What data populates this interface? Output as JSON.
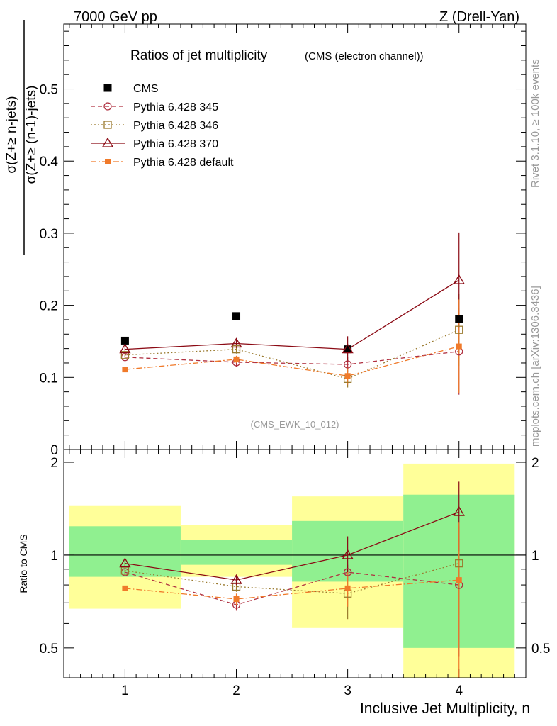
{
  "header": {
    "left": "7000 GeV pp",
    "right": "Z (Drell-Yan)",
    "title_main": "Ratios of jet multiplicity",
    "title_sub": "(CMS (electron channel))",
    "analysis_tag": "(CMS_EWK_10_012)",
    "side_top": "Rivet 3.1.10, ≥ 100k events",
    "side_bottom": "mcplots.cern.ch [arXiv:1306.3436]"
  },
  "chart_data": [
    {
      "type": "scatter",
      "panel": "main",
      "ylabel_numerator": "σ(Z+≥ n-jets)",
      "ylabel_denominator": "σ(Z+≥ (n-1)-jets)",
      "x": [
        1,
        2,
        3,
        4
      ],
      "xlim": [
        0.45,
        4.6
      ],
      "ylim": [
        0,
        0.59
      ],
      "yticks": [
        0,
        0.1,
        0.2,
        0.3,
        0.4,
        0.5
      ],
      "ytick_labels": [
        "0",
        "0.1",
        "0.2",
        "0.3",
        "0.4",
        "0.5"
      ],
      "legend_position": "top-left",
      "series": [
        {
          "name": "CMS",
          "color": "#000000",
          "marker": "filled-square",
          "line": "none",
          "values": [
            0.151,
            0.185,
            0.139,
            0.181
          ]
        },
        {
          "name": "Pythia 6.428 345",
          "color": "#b03040",
          "marker": "open-circle",
          "line": "dashed",
          "values": [
            0.128,
            0.121,
            0.118,
            0.136
          ],
          "err": [
            0.003,
            0.006,
            0.01,
            0.06
          ]
        },
        {
          "name": "Pythia 6.428 346",
          "color": "#9a7a2e",
          "marker": "open-square",
          "line": "dotted",
          "values": [
            0.131,
            0.139,
            0.098,
            0.166
          ],
          "err": [
            0.003,
            0.006,
            0.012,
            0.05
          ]
        },
        {
          "name": "Pythia 6.428 370",
          "color": "#8b0a14",
          "marker": "open-triangle",
          "line": "solid",
          "values": [
            0.139,
            0.147,
            0.139,
            0.235
          ],
          "err": [
            0.003,
            0.006,
            0.018,
            0.066
          ]
        },
        {
          "name": "Pythia 6.428 default",
          "color": "#f07a2a",
          "marker": "filled-small-square",
          "line": "dashdot",
          "values": [
            0.111,
            0.125,
            0.102,
            0.143
          ],
          "err": [
            0.002,
            0.005,
            0.012,
            0.065
          ]
        }
      ]
    },
    {
      "type": "scatter",
      "panel": "ratio",
      "ylabel": "Ratio to CMS",
      "xlabel": "Inclusive Jet Multiplicity, n",
      "x": [
        1,
        2,
        3,
        4
      ],
      "xtick_labels": [
        "1",
        "2",
        "3",
        "4"
      ],
      "xlim": [
        0.45,
        4.6
      ],
      "ylim": [
        0.4,
        2.2
      ],
      "yticks": [
        0.5,
        1,
        2
      ],
      "ytick_labels": [
        "0.5",
        "1",
        "2"
      ],
      "reference_line": 1,
      "uncertainty_bands": [
        {
          "x_low": 0.5,
          "x_high": 1.5,
          "inner": [
            0.85,
            1.24
          ],
          "outer": [
            0.67,
            1.45
          ]
        },
        {
          "x_low": 1.5,
          "x_high": 2.5,
          "inner": [
            0.93,
            1.12
          ],
          "outer": [
            0.85,
            1.25
          ]
        },
        {
          "x_low": 2.5,
          "x_high": 3.5,
          "inner": [
            0.82,
            1.29
          ],
          "outer": [
            0.58,
            1.55
          ]
        },
        {
          "x_low": 3.5,
          "x_high": 4.5,
          "inner": [
            0.5,
            1.57
          ],
          "outer": [
            0.3,
            1.98
          ]
        }
      ],
      "band_colors": {
        "inner": "#90f090",
        "outer": "#ffff99"
      },
      "series": [
        {
          "name": "Pythia 6.428 345",
          "values": [
            0.88,
            0.69,
            0.88,
            0.8
          ],
          "err": [
            0.02,
            0.03,
            0.05,
            0.33
          ]
        },
        {
          "name": "Pythia 6.428 346",
          "values": [
            0.89,
            0.79,
            0.75,
            0.94
          ],
          "err": [
            0.02,
            0.03,
            0.13,
            0.3
          ]
        },
        {
          "name": "Pythia 6.428 370",
          "values": [
            0.94,
            0.83,
            1.0,
            1.38
          ],
          "err": [
            0.02,
            0.03,
            0.15,
            0.35
          ]
        },
        {
          "name": "Pythia 6.428 default",
          "values": [
            0.78,
            0.72,
            0.78,
            0.83
          ],
          "err": [
            0.015,
            0.03,
            0.1,
            0.45
          ]
        }
      ]
    }
  ]
}
